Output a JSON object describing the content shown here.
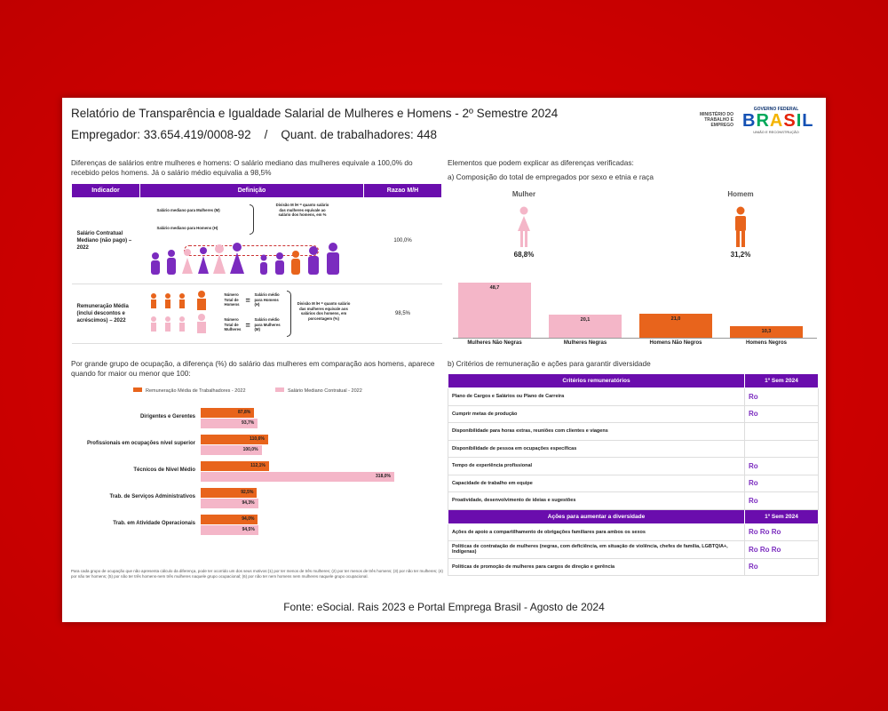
{
  "header": {
    "title": "Relatório de Transparência e Igualdade Salarial de Mulheres e Homens - 2º Semestre 2024",
    "employer": "Empregador: 33.654.419/0008-92    /    Quant. de trabalhadores: 448",
    "ministry": "MINISTÉRIO DO TRABALHO E EMPREGO",
    "gov_top": "GOVERNO FEDERAL",
    "gov_logo": "BRASIL",
    "gov_sub": "UNIÃO E RECONSTRUÇÃO"
  },
  "left_top": {
    "intro": "Diferenças de salários entre mulheres e homens: O salário mediano das mulheres equivale a 100,0% do recebido pelos homens. Já o salário médio equivalia a 98,5%",
    "cols": [
      "Indicador",
      "Definição",
      "Razao M/H"
    ],
    "row1": {
      "indicator": "Salário Contratual Mediano (não pago) – 2022",
      "def_a": "Salário mediano para Mulheres (M)",
      "def_b": "Salário mediano para Homens (H)",
      "def_c": "Divisão M /H = quanto salário das mulheres equivale ao salário dos homens, em %",
      "ratio": "100,0%"
    },
    "row2": {
      "indicator": "Remuneração Média (inclui descontos e acréscimos) – 2022",
      "def_a": "Número Total de Homens",
      "def_b": "Salário médio para Homens (H)",
      "def_c": "Número Total de Mulheres",
      "def_d": "Salário médio para Mulheres (M)",
      "def_e": "Divisão M /H = quanto salário das mulheres equivale aos salários dos homens, em porcentagem (%)",
      "ratio": "98,5%"
    }
  },
  "right_top": {
    "title": "Elementos que podem explicar as diferenças verificadas:",
    "subtitle": "a) Composição do total de empregados por sexo e etnia e raça",
    "woman_label": "Mulher",
    "woman_pct": "68,8%",
    "man_label": "Homem",
    "man_pct": "31,2%"
  },
  "chart_data": [
    {
      "type": "bar",
      "categories": [
        "Mulheres Não Negras",
        "Mulheres Negras",
        "Homens Não Negros",
        "Homens Negros"
      ],
      "values": [
        48.7,
        20.1,
        21.0,
        10.3
      ],
      "labels": [
        "48,7",
        "20,1",
        "21,0",
        "10,3"
      ],
      "colors": [
        "#f4b6c8",
        "#f4b6c8",
        "#e8641c",
        "#e8641c"
      ]
    },
    {
      "type": "bar",
      "orientation": "horizontal",
      "categories": [
        "Dirigentes e Gerentes",
        "Profissionais em ocupações nível superior",
        "Técnicos de Nível Médio",
        "Trab. de Serviços Administrativos",
        "Trab. em Atividade Operacionais"
      ],
      "series": [
        {
          "name": "Remuneração Média de Trabalhadores - 2022",
          "values": [
            87.8,
            110.6,
            112.1,
            92.5,
            94.0
          ],
          "labels": [
            "87,8%",
            "110,6%",
            "112,1%",
            "92,5%",
            "94,0%"
          ],
          "color": "#e8641c"
        },
        {
          "name": "Salário Mediano Contratual - 2022",
          "values": [
            93.7,
            100.0,
            318.0,
            94.3,
            94.5
          ],
          "labels": [
            "93,7%",
            "100,0%",
            "318,0%",
            "94,3%",
            "94,5%"
          ],
          "color": "#f4b6c8"
        }
      ]
    }
  ],
  "left_bottom": {
    "intro": "Por grande grupo de ocupação, a diferença (%) do salário das mulheres em comparação aos homens, aparece quando for maior ou menor que 100:",
    "footnote": "Para cada grupo de ocupação que não apresenta cálculo da diferença, pode ter ocorrido um dos seus motivos:(1) por ter menos de três mulheres; (2) por ter menos de três homens; (3) por não ter mulheres; (4) por não ter homens; (5) por não ter três homens-nem três mulheres naquele grupo ocupacional; (6) por não ter nem homens nem mulheres naquele grupo ocupacional."
  },
  "right_bottom": {
    "title": "b) Critérios de remuneração e ações para garantir diversidade",
    "crit_header": "Critérios remuneratórios",
    "sem_header": "1º Sem 2024",
    "criteria": [
      "Plano de Cargos e Salários ou Plano de Carreira",
      "Cumprir metas de produção",
      "Disponibilidade para horas extras, reuniões com clientes e viagens",
      "Disponibilidade de pessoa em ocupações específicas",
      "Tempo de experiência profissional",
      "Capacidade de trabalho em equipe",
      "Proatividade, desenvolvimento de ideias e sugestões"
    ],
    "criteria_marks": [
      "Ro",
      "Ro",
      "",
      "",
      "Ro",
      "Ro",
      "Ro"
    ],
    "actions_header": "Ações para aumentar a diversidade",
    "actions": [
      "Ações de apoio a compartilhamento de obrigações familiares para ambos os sexos",
      "Políticas de contratação de mulheres (negras, com deficiência, em situação de violência, chefes de família, LGBTQIA+, Indígenas)",
      "Políticas de promoção de mulheres para cargos de direção e gerência"
    ],
    "actions_marks": [
      "Ro Ro Ro",
      "Ro Ro Ro",
      "Ro"
    ]
  },
  "source": "Fonte: eSocial. Rais 2023 e Portal Emprega Brasil - Agosto de 2024"
}
